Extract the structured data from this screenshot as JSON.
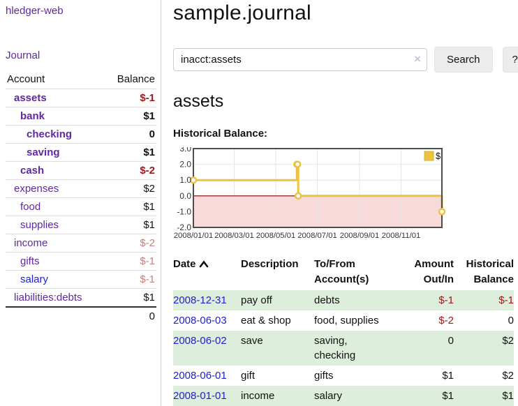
{
  "app": {
    "brand": "hledger-web"
  },
  "colors": {
    "accent_purple": "#5f28a0",
    "link_blue": "#2020d0",
    "negative_strong": "#a01818",
    "negative_muted": "#c3807f",
    "row_stripe_green": "#ddeedd",
    "series_gold": "#edc240"
  },
  "sidebar": {
    "journal_link": "Journal",
    "header": {
      "account": "Account",
      "balance": "Balance"
    },
    "accounts": [
      {
        "name": "assets",
        "balance": "$-1"
      },
      {
        "name": "bank",
        "balance": "$1"
      },
      {
        "name": "checking",
        "balance": "0"
      },
      {
        "name": "saving",
        "balance": "$1"
      },
      {
        "name": "cash",
        "balance": "$-2"
      },
      {
        "name": "expenses",
        "balance": "$2"
      },
      {
        "name": "food",
        "balance": "$1"
      },
      {
        "name": "supplies",
        "balance": "$1"
      },
      {
        "name": "income",
        "balance": "$-2"
      },
      {
        "name": "gifts",
        "balance": "$-1"
      },
      {
        "name": "salary",
        "balance": "$-1"
      },
      {
        "name": "liabilities:debts",
        "balance": "$1"
      }
    ],
    "total": "0"
  },
  "main": {
    "title": "sample.journal",
    "search": {
      "value": "inacct:assets",
      "clear_icon": "×",
      "button_label": "Search",
      "help_label": "?"
    },
    "account_heading": "assets",
    "chart_label": "Historical Balance:"
  },
  "chart_data": {
    "type": "line",
    "title": "Historical Balance:",
    "step": true,
    "series": [
      {
        "name": "$",
        "color": "#edc240",
        "x": [
          "2008/01/01",
          "2008/06/01",
          "2008/06/02",
          "2008/06/03",
          "2008/12/31"
        ],
        "values": [
          1,
          2,
          2,
          0,
          -1
        ]
      }
    ],
    "xrange": [
      "2008/01/01",
      "2008/12/31"
    ],
    "ylim": [
      -2,
      3
    ],
    "yticks": [
      3.0,
      2.0,
      1.0,
      0.0,
      -1.0,
      -2.0
    ],
    "xticks": [
      "2008/01/01",
      "2008/03/01",
      "2008/05/01",
      "2008/07/01",
      "2008/09/01",
      "2008/11/01"
    ],
    "grid": true,
    "negative_fill": "#f9dada",
    "zero_line_color": "#8b0000",
    "legend": {
      "label": "$",
      "position": "top-right"
    }
  },
  "register": {
    "headers": {
      "date": "Date",
      "description": "Description",
      "accounts": "To/From Account(s)",
      "amount": "Amount Out/In",
      "balance": "Historical Balance"
    },
    "rows": [
      {
        "date": "2008-12-31",
        "description": "pay off",
        "accounts": "debts",
        "amount": "$-1",
        "balance": "$-1"
      },
      {
        "date": "2008-06-03",
        "description": "eat & shop",
        "accounts": "food, supplies",
        "amount": "$-2",
        "balance": "0"
      },
      {
        "date": "2008-06-02",
        "description": "save",
        "accounts": "saving,\nchecking",
        "amount": "0",
        "balance": "$2"
      },
      {
        "date": "2008-06-01",
        "description": "gift",
        "accounts": "gifts",
        "amount": "$1",
        "balance": "$2"
      },
      {
        "date": "2008-01-01",
        "description": "income",
        "accounts": "salary",
        "amount": "$1",
        "balance": "$1"
      }
    ]
  }
}
